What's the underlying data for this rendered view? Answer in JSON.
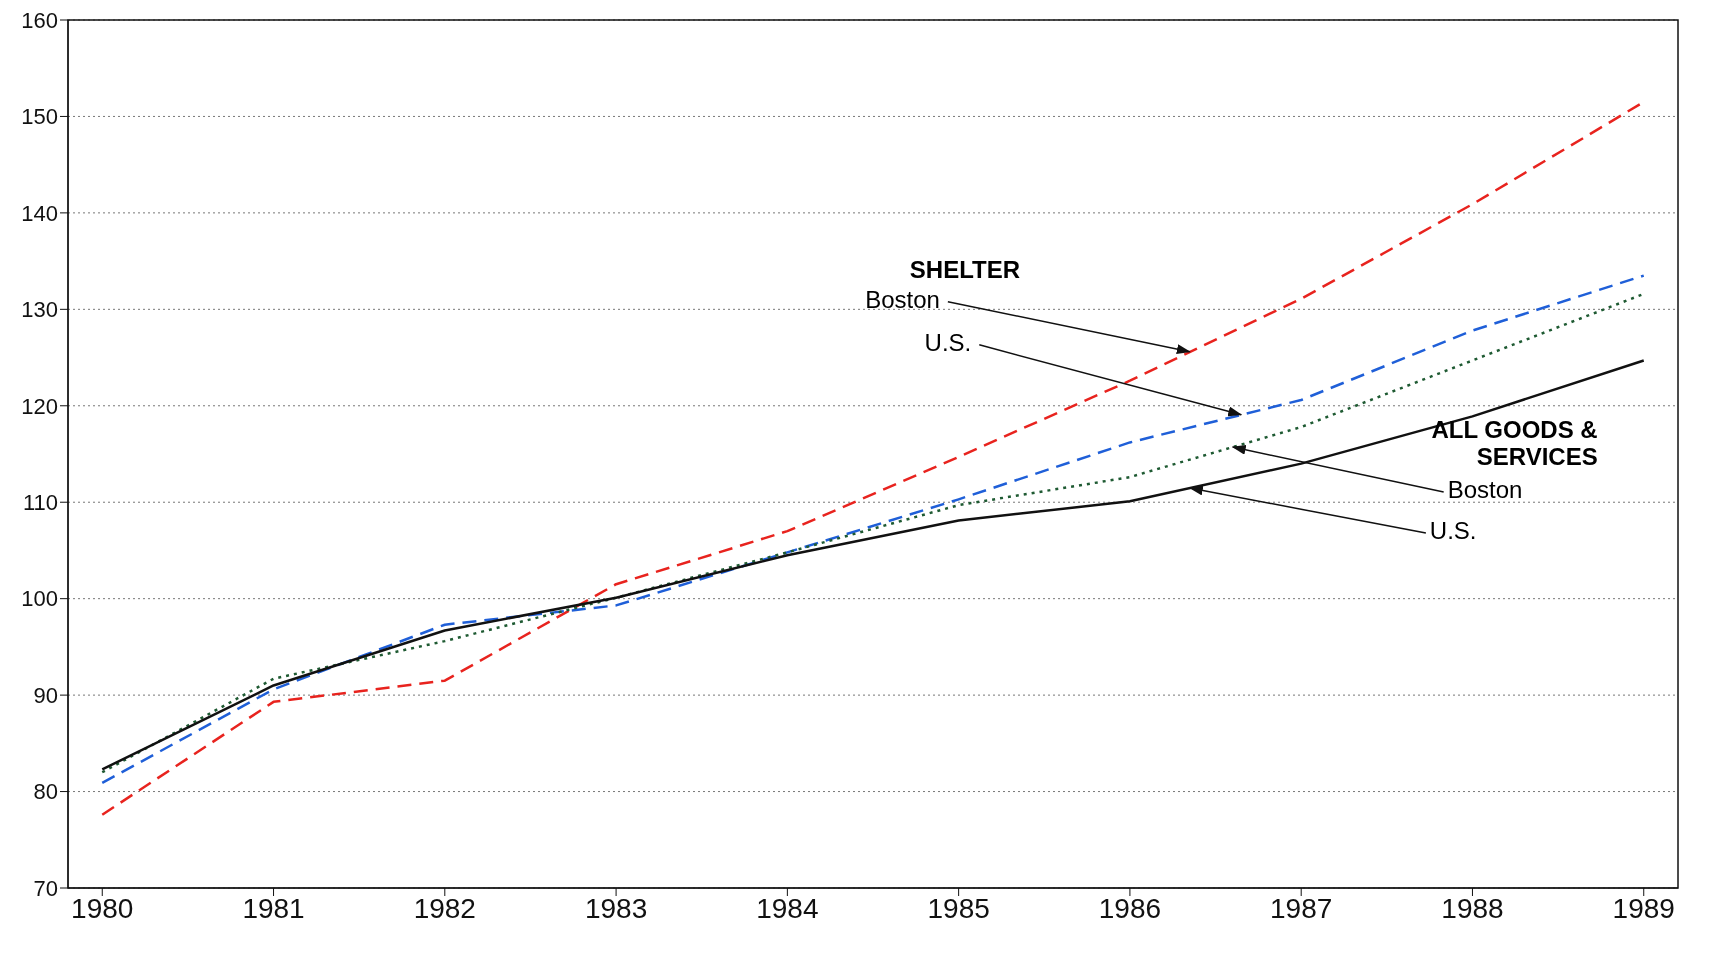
{
  "chart_data": {
    "type": "line",
    "x": [
      1980,
      1981,
      1982,
      1983,
      1984,
      1985,
      1986,
      1987,
      1988,
      1989
    ],
    "xlim": [
      1979.8,
      1989.2
    ],
    "xticks": [
      1980,
      1981,
      1982,
      1983,
      1984,
      1985,
      1986,
      1987,
      1988,
      1989
    ],
    "ylim": [
      70,
      160
    ],
    "yticks": [
      70,
      80,
      90,
      100,
      110,
      120,
      130,
      140,
      150,
      160
    ],
    "grid": "y",
    "marker": "none",
    "series": [
      {
        "color": "#e8231e",
        "line_style": "dashed",
        "values": [
          77.6,
          89.3,
          91.5,
          101.5,
          107,
          114.7,
          122.6,
          131.1,
          140.9,
          151.5
        ]
      },
      {
        "color": "#1f5fd8",
        "line_style": "dashed",
        "values": [
          80.9,
          90.6,
          97.3,
          99.3,
          104.8,
          110.3,
          116.2,
          120.6,
          127.8,
          133.5
        ]
      },
      {
        "color": "#1e5a32",
        "line_style": "dotted",
        "values": [
          82,
          91.7,
          95.6,
          100.1,
          104.8,
          109.7,
          112.6,
          117.8,
          124.7,
          131.6
        ]
      },
      {
        "color": "#111111",
        "line_style": "solid",
        "values": [
          82.3,
          91,
          96.7,
          100.1,
          104.5,
          108.1,
          110.1,
          114,
          118.9,
          124.7
        ]
      }
    ],
    "annotations": [
      "SHELTER",
      {
        "text": "Boston",
        "x": 1986.35,
        "y": 125.6
      },
      {
        "text": "U.S.",
        "x": 1986.65,
        "y": 119.06
      },
      "ALL GOODS & SERVICES",
      {
        "text": "Boston",
        "x": 1986.6,
        "y": 115.72
      },
      {
        "text": "U.S.",
        "x": 1986.35,
        "y": 111.47
      }
    ]
  }
}
